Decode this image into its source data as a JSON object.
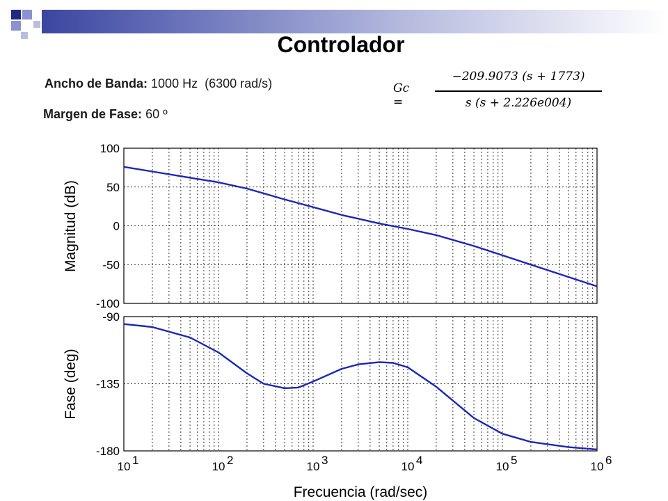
{
  "slide": {
    "title": "Controlador",
    "bandwidth_label": "Ancho de Banda:",
    "bandwidth_value": "1000 Hz",
    "bandwidth_extra": "(6300 rad/s)",
    "phase_margin_label": "Margen de Fase:",
    "phase_margin_value": "60 º",
    "formula": {
      "lhs": "Gc =",
      "numerator": "−209.9073 (s + 1773)",
      "denominator": "s (s + 2.226e004)"
    },
    "colors": {
      "accent_dark": "#1f2a80",
      "accent_light": "#8a93cf",
      "curve": "#1a28b8"
    }
  },
  "chart_data": [
    {
      "type": "line",
      "title": "",
      "xlabel": "Frecuencia (rad/sec)",
      "ylabel": "Magnitud (dB)",
      "xscale": "log",
      "xlim": [
        10,
        1000000
      ],
      "ylim": [
        -100,
        100
      ],
      "yticks": [
        100,
        50,
        0,
        -50,
        -100
      ],
      "grid": true,
      "series": [
        {
          "x": [
            10,
            20,
            50,
            100,
            200,
            500,
            1000,
            2000,
            5000,
            10000,
            20000,
            50000,
            100000,
            200000,
            500000,
            1000000
          ],
          "values": [
            76,
            70,
            62,
            56,
            48,
            34,
            24,
            14,
            3,
            -4,
            -12,
            -26,
            -38,
            -50,
            -66,
            -78
          ]
        }
      ]
    },
    {
      "type": "line",
      "title": "",
      "xlabel": "Frecuencia (rad/sec)",
      "ylabel": "Fase (deg)",
      "xscale": "log",
      "xlim": [
        10,
        1000000
      ],
      "ylim": [
        -180,
        -90
      ],
      "yticks": [
        -90,
        -135,
        -180
      ],
      "xticks": [
        "10^1",
        "10^2",
        "10^3",
        "10^4",
        "10^5",
        "10^6"
      ],
      "grid": true,
      "series": [
        {
          "x": [
            10,
            20,
            50,
            100,
            200,
            300,
            500,
            700,
            1000,
            2000,
            3000,
            5000,
            7000,
            10000,
            20000,
            50000,
            100000,
            200000,
            500000,
            1000000
          ],
          "values": [
            -95,
            -97,
            -104,
            -114,
            -128,
            -135,
            -138,
            -137.5,
            -133.5,
            -125,
            -122,
            -120.5,
            -121,
            -124,
            -137,
            -158,
            -168.5,
            -174,
            -177.5,
            -179
          ]
        }
      ]
    }
  ]
}
